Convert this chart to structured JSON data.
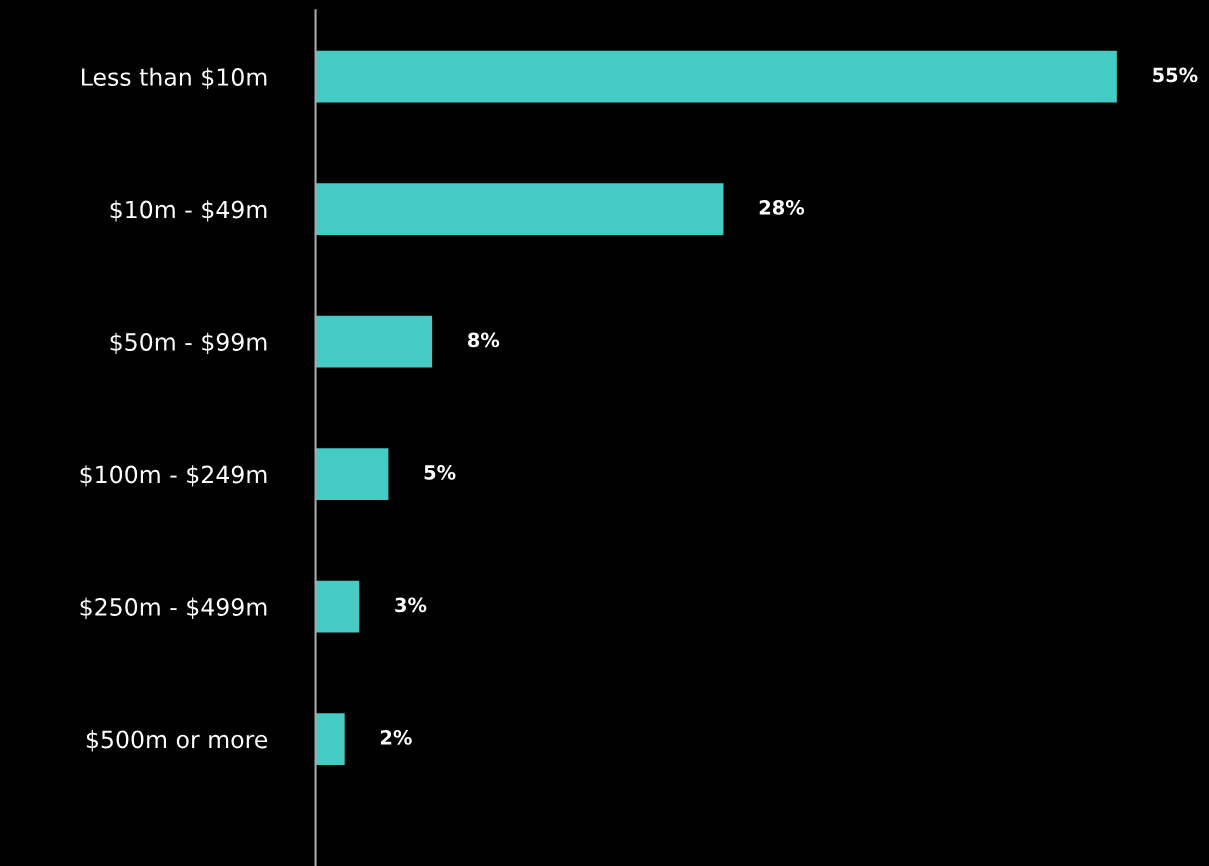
{
  "chart_data": {
    "type": "bar",
    "orientation": "horizontal",
    "tick_labels": "y",
    "categories": [
      "Less than $10m",
      "$10m - $49m",
      "$50m - $99m",
      "$100m - $249m",
      "$250m - $499m",
      "$500m or more"
    ],
    "values": [
      55,
      28,
      8,
      5,
      3,
      2
    ],
    "value_labels": [
      "55%",
      "28%",
      "8%",
      "5%",
      "3%",
      "2%"
    ],
    "color": "#45cbc4",
    "grid": false,
    "legend": false
  }
}
